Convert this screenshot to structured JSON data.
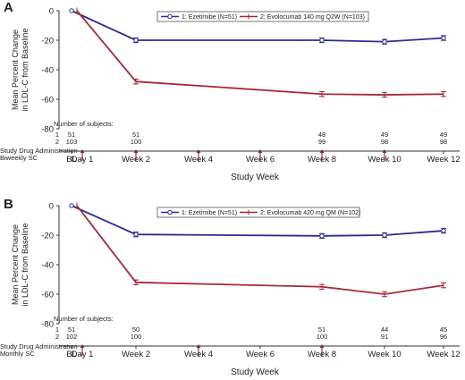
{
  "chart_data": [
    {
      "type": "line",
      "panel": "A",
      "ylabel": "Mean Percent Change in LDL-C from Baseline",
      "xlabel": "Study Week",
      "ylim": [
        -80,
        0
      ],
      "yticks": [
        "0",
        "-20",
        "-40",
        "-60",
        "-80"
      ],
      "ytick_values": [
        0,
        -20,
        -40,
        -60,
        -80
      ],
      "categories": [
        "BL",
        "Day 1",
        "Week 2",
        "Week 4",
        "Week 6",
        "Week 8",
        "Week 10",
        "Week 12"
      ],
      "legend": {
        "placement": "top-right"
      },
      "series": [
        {
          "name": "1: Ezetimibe (N=51)",
          "color": "#2b2b8f",
          "marker": "circle",
          "x": [
            "BL",
            "Week 2",
            "Week 8",
            "Week 10",
            "Week 12"
          ],
          "values": [
            0,
            -20,
            -20,
            -21,
            -18.5
          ]
        },
        {
          "name": "2: Evolocumab 140 mg Q2W (N=103)",
          "color": "#a52a3c",
          "marker": "plus",
          "x": [
            "BL",
            "Week 2",
            "Week 8",
            "Week 10",
            "Week 12"
          ],
          "values": [
            0,
            -48,
            -56.5,
            -57,
            -56.5
          ]
        }
      ],
      "subjects_label": "Number of subjects:",
      "subjects": {
        "row_labels": [
          "1",
          "2"
        ],
        "columns": [
          "BL",
          "Week 2",
          "Week 8",
          "Week 10",
          "Week 12"
        ],
        "row1": [
          "51",
          "51",
          "48",
          "49",
          "49"
        ],
        "row2": [
          "103",
          "100",
          "99",
          "98",
          "98"
        ]
      },
      "administration_label_1": "Study Drug Administration",
      "administration_label_2": "Biweekly SC",
      "administration_at": [
        "Day 1",
        "Week 2",
        "Week 4",
        "Week 6",
        "Week 8",
        "Week 10"
      ]
    },
    {
      "type": "line",
      "panel": "B",
      "ylabel": "Mean Percent Change in LDL-C from Baseline",
      "xlabel": "Study Week",
      "ylim": [
        -80,
        0
      ],
      "yticks": [
        "0",
        "-20",
        "-40",
        "-60",
        "-80"
      ],
      "ytick_values": [
        0,
        -20,
        -40,
        -60,
        -80
      ],
      "categories": [
        "BL",
        "Day 1",
        "Week 2",
        "Week 4",
        "Week 6",
        "Week 8",
        "Week 10",
        "Week 12"
      ],
      "legend": {
        "placement": "top-right"
      },
      "series": [
        {
          "name": "1: Ezetimibe (N=51)",
          "color": "#2b2b8f",
          "marker": "circle",
          "x": [
            "BL",
            "Week 2",
            "Week 8",
            "Week 10",
            "Week 12"
          ],
          "values": [
            0,
            -19.5,
            -20.5,
            -20,
            -17
          ]
        },
        {
          "name": "2: Evolocumab 420 mg QM (N=102)",
          "color": "#a52a3c",
          "marker": "plus",
          "x": [
            "BL",
            "Week 2",
            "Week 8",
            "Week 10",
            "Week 12"
          ],
          "values": [
            0,
            -52,
            -55,
            -60,
            -54
          ]
        }
      ],
      "subjects_label": "Number of subjects:",
      "subjects": {
        "row_labels": [
          "1",
          "2"
        ],
        "columns": [
          "BL",
          "Week 2",
          "Week 8",
          "Week 10",
          "Week 12"
        ],
        "row1": [
          "51",
          "50",
          "51",
          "44",
          "45"
        ],
        "row2": [
          "102",
          "100",
          "100",
          "91",
          "96"
        ]
      },
      "administration_label_1": "Study Drug Administration",
      "administration_label_2": "Monthly SC",
      "administration_at": [
        "Day 1",
        "Week 4",
        "Week 8"
      ]
    }
  ],
  "colors": {
    "ezetimibe": "#2b2b8f",
    "evolocumab": "#a52a3c",
    "arrow": "#b03040",
    "axis": "#333333"
  }
}
